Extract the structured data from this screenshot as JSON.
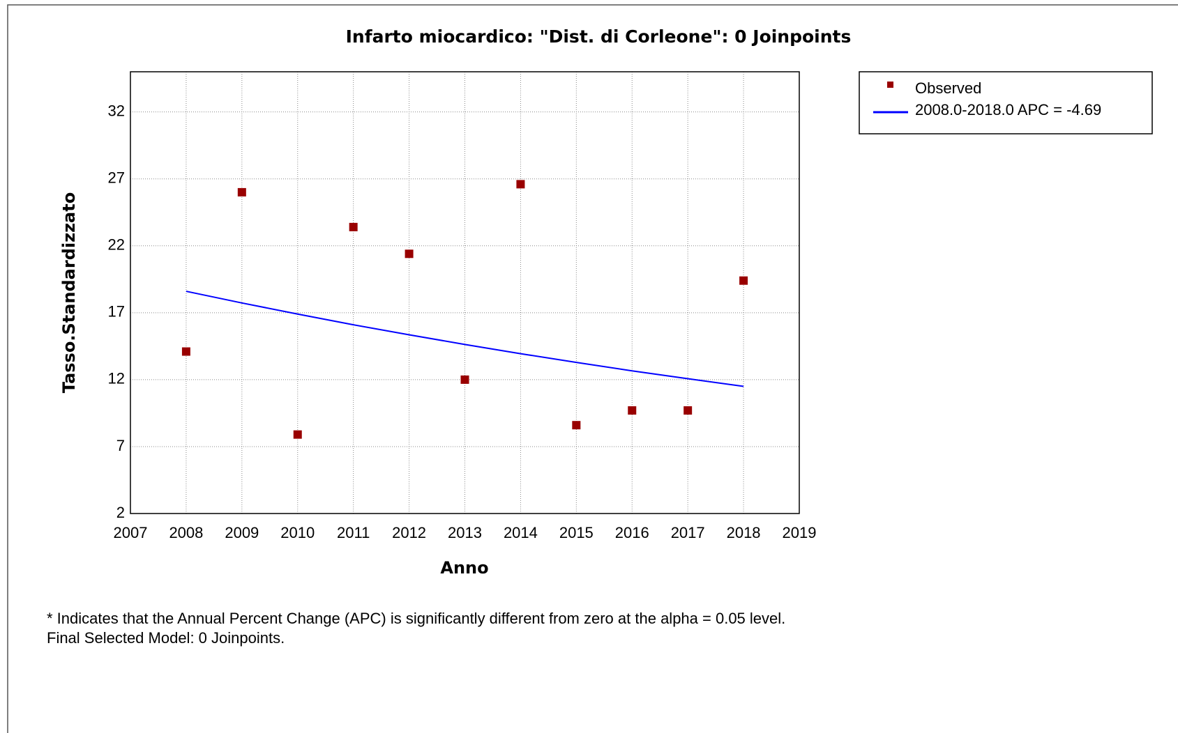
{
  "chart_data": {
    "type": "scatter",
    "title": "Infarto miocardico: \"Dist. di Corleone\": 0 Joinpoints",
    "x_label": "Anno",
    "y_label": "Tasso.Standardizzato",
    "x": [
      2008,
      2009,
      2010,
      2011,
      2012,
      2013,
      2014,
      2015,
      2016,
      2017,
      2018
    ],
    "series": [
      {
        "name": "Observed",
        "type": "scatter",
        "color": "#990000",
        "values": [
          14.1,
          26.0,
          7.9,
          23.4,
          21.4,
          12.0,
          26.6,
          8.6,
          9.7,
          9.7,
          19.4
        ]
      },
      {
        "name": "2008.0-2018.0 APC  = -4.69",
        "type": "line",
        "color": "#0000ff",
        "values": [
          18.6,
          17.73,
          16.9,
          16.1,
          15.35,
          14.63,
          13.94,
          13.29,
          12.66,
          12.07,
          11.5
        ]
      }
    ],
    "xlim": [
      2007,
      2019
    ],
    "xticks": [
      2007,
      2008,
      2009,
      2010,
      2011,
      2012,
      2013,
      2014,
      2015,
      2016,
      2017,
      2018,
      2019
    ],
    "ylim": [
      2,
      35
    ],
    "yticks": [
      2,
      7,
      12,
      17,
      22,
      27,
      32
    ],
    "grid": true,
    "legend": "outside-right",
    "notes": [
      "* Indicates that the Annual Percent Change (APC) is significantly different from zero at the alpha = 0.05 level.",
      "Final Selected Model: 0 Joinpoints."
    ]
  }
}
